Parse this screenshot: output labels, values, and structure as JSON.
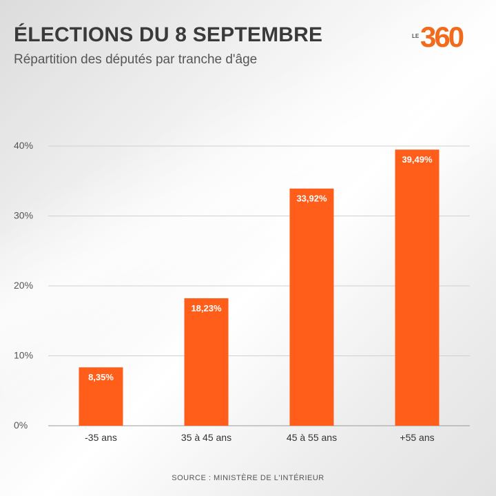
{
  "header": {
    "title": "ÉLECTIONS DU 8 SEPTEMBRE",
    "subtitle": "Répartition des députés par tranche d'âge"
  },
  "logo": {
    "prefix": "LE",
    "number": "360",
    "color": "#f26a1b"
  },
  "chart_data": {
    "type": "bar",
    "categories": [
      "-35 ans",
      "35 à 45 ans",
      "45 à 55 ans",
      "+55 ans"
    ],
    "values": [
      8.35,
      18.23,
      33.92,
      39.49
    ],
    "value_labels": [
      "8,35%",
      "18,23%",
      "33,92%",
      "39,49%"
    ],
    "title": "Répartition des députés par tranche d'âge",
    "xlabel": "",
    "ylabel": "",
    "ylim": [
      0,
      40
    ],
    "yticks": [
      0,
      10,
      20,
      30,
      40
    ],
    "ytick_labels": [
      "0%",
      "10%",
      "20%",
      "30%",
      "40%"
    ],
    "grid": true,
    "bar_color": "#ff5e1a"
  },
  "footer": {
    "source": "SOURCE : MINISTÈRE DE L'INTÉRIEUR"
  }
}
